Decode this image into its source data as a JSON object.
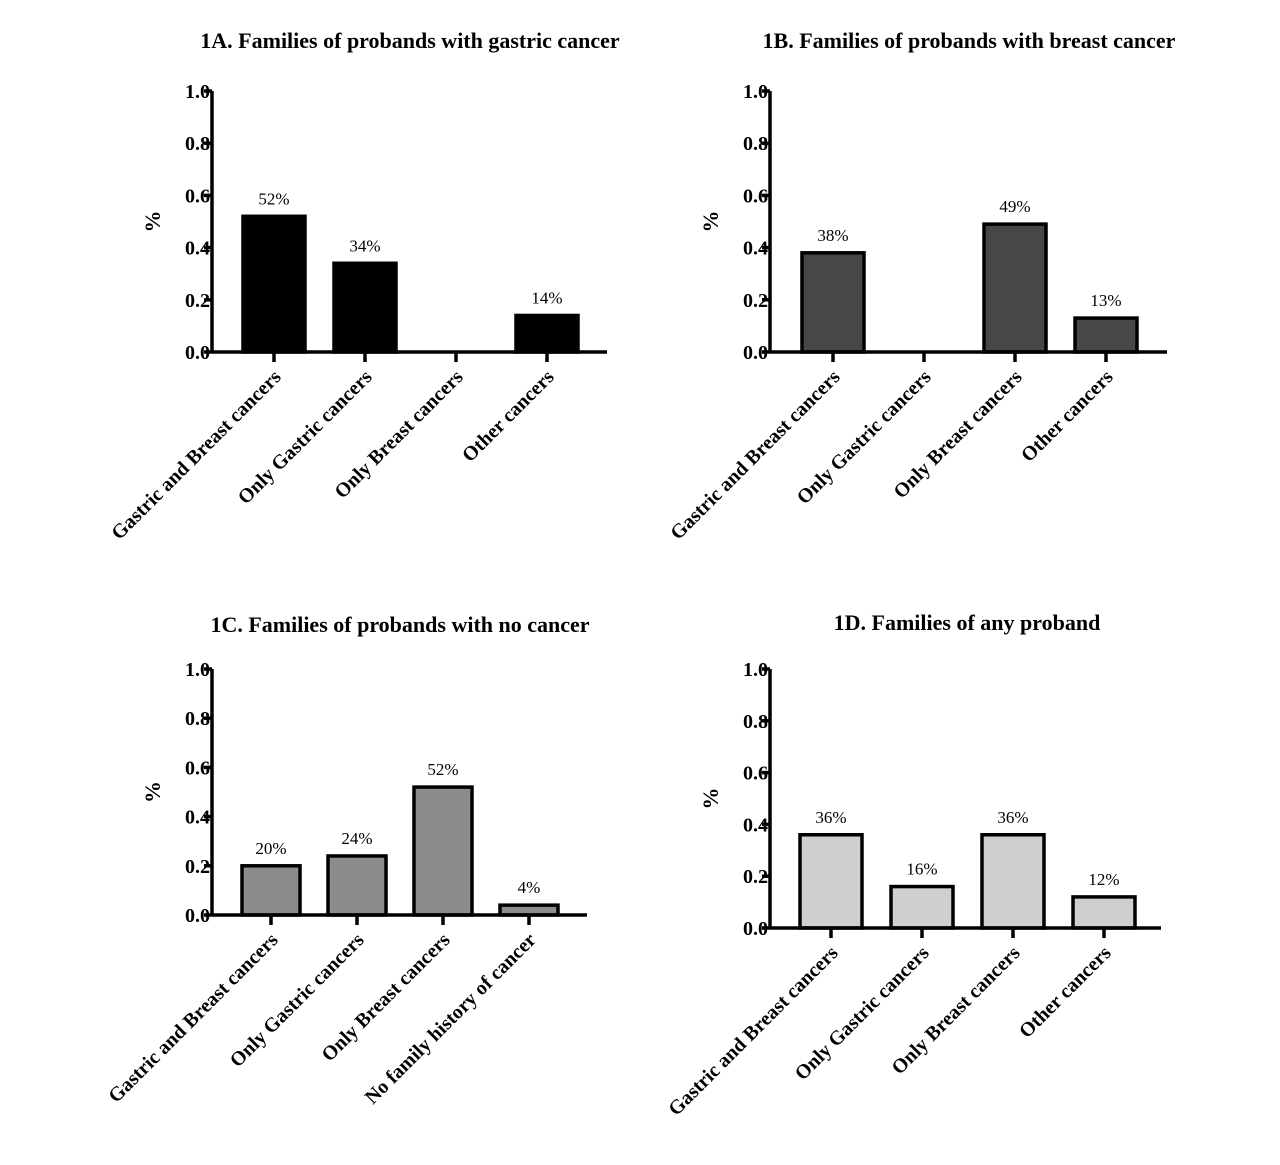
{
  "chart_data": [
    {
      "type": "bar",
      "title": "1A. Families of probands with gastric cancer",
      "ylabel": "%",
      "ylim": [
        0,
        1.0
      ],
      "yticks": [
        "0.0",
        "0.2",
        "0.4",
        "0.6",
        "0.8",
        "1.0"
      ],
      "categories": [
        "Gastric and Breast cancers",
        "Only Gastric cancers",
        "Only Breast cancers",
        "Other cancers"
      ],
      "values": [
        0.52,
        0.34,
        0,
        0.14
      ],
      "data_labels": [
        "52%",
        "34%",
        "",
        "14%"
      ],
      "bar_color": "#000000"
    },
    {
      "type": "bar",
      "title": "1B. Families of probands with breast cancer",
      "ylabel": "%",
      "ylim": [
        0,
        1.0
      ],
      "yticks": [
        "0.0",
        "0.2",
        "0.4",
        "0.6",
        "0.8",
        "1.0"
      ],
      "categories": [
        "Gastric and Breast cancers",
        "Only Gastric cancers",
        "Only Breast cancers",
        "Other cancers"
      ],
      "values": [
        0.38,
        0,
        0.49,
        0.13
      ],
      "data_labels": [
        "38%",
        "",
        "49%",
        "13%"
      ],
      "bar_color": "#474747"
    },
    {
      "type": "bar",
      "title": "1C. Families of probands with no cancer",
      "ylabel": "%",
      "ylim": [
        0,
        1.0
      ],
      "yticks": [
        "0.0",
        "0.2",
        "0.4",
        "0.6",
        "0.8",
        "1.0"
      ],
      "categories": [
        "Gastric and Breast cancers",
        "Only Gastric cancers",
        "Only Breast cancers",
        "No family history of cancer"
      ],
      "values": [
        0.2,
        0.24,
        0.52,
        0.04
      ],
      "data_labels": [
        "20%",
        "24%",
        "52%",
        "4%"
      ],
      "bar_color": "#8c8c8c"
    },
    {
      "type": "bar",
      "title": "1D. Families of any proband",
      "ylabel": "%",
      "ylim": [
        0,
        1.0
      ],
      "yticks": [
        "0.0",
        "0.2",
        "0.4",
        "0.6",
        "0.8",
        "1.0"
      ],
      "categories": [
        "Gastric and Breast cancers",
        "Only Gastric cancers",
        "Only Breast cancers",
        "Other cancers"
      ],
      "values": [
        0.36,
        0.16,
        0.36,
        0.12
      ],
      "data_labels": [
        "36%",
        "16%",
        "36%",
        "12%"
      ],
      "bar_color": "#cfcfcf"
    }
  ]
}
